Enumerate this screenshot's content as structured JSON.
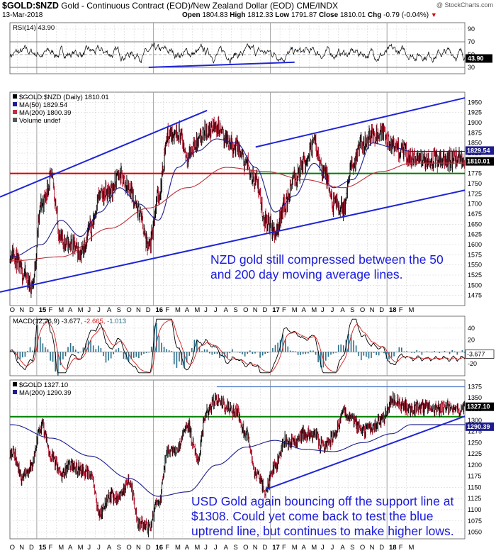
{
  "header": {
    "symbol": "$GOLD:$NZD",
    "description": "Gold - Continuous Contract (EOD)/New Zealand Dollar (EOD)",
    "exchange": "CME/INDX",
    "date": "13-Mar-2018",
    "open_label": "Open",
    "open": "1804.83",
    "high_label": "High",
    "high": "1812.33",
    "low_label": "Low",
    "low": "1791.87",
    "close_label": "Close",
    "close": "1810.01",
    "chg_label": "Chg",
    "chg": "-0.79 (-0.04%)",
    "watermark": "@ StockCharts.com"
  },
  "chart_data": [
    {
      "type": "line",
      "panel": "rsi",
      "legend": "RSI(14) 43.90",
      "ylim": [
        20,
        100
      ],
      "yticks": [
        30,
        50,
        70,
        90
      ],
      "reference_lines": [
        30,
        50,
        70
      ],
      "last_value_tag": "43.90",
      "trendline": {
        "from": [
          "2015-12",
          30
        ],
        "to": [
          "2017-03",
          38
        ]
      }
    },
    {
      "type": "candlestick",
      "panel": "price",
      "legend": [
        "$GOLD:$NZD (Daily) 1810.01",
        "MA(50) 1829.54",
        "MA(200) 1800.39",
        "Volume undef"
      ],
      "ylim": [
        1450,
        1975
      ],
      "yticks": [
        1475,
        1500,
        1525,
        1550,
        1575,
        1600,
        1625,
        1650,
        1675,
        1700,
        1725,
        1750,
        1775,
        1800,
        1825,
        1850,
        1875,
        1900,
        1925,
        1950
      ],
      "last_value_tags": [
        "1829.54",
        "1810.01"
      ],
      "support_lines": [
        {
          "value": 1775,
          "color": "#e00000",
          "range": [
            "2014-10",
            "2016-11"
          ]
        },
        {
          "value": 1775,
          "color": "#008000",
          "range": [
            "2016-11",
            "2018-03"
          ]
        }
      ],
      "price_series": [
        [
          "2014-10",
          1580
        ],
        [
          "2014-11",
          1530
        ],
        [
          "2014-12",
          1500
        ],
        [
          "2015-01",
          1700
        ],
        [
          "2015-02",
          1760
        ],
        [
          "2015-03",
          1610
        ],
        [
          "2015-04",
          1600
        ],
        [
          "2015-05",
          1580
        ],
        [
          "2015-06",
          1640
        ],
        [
          "2015-07",
          1720
        ],
        [
          "2015-08",
          1730
        ],
        [
          "2015-09",
          1770
        ],
        [
          "2015-10",
          1740
        ],
        [
          "2015-11",
          1680
        ],
        [
          "2015-12",
          1590
        ],
        [
          "2016-01",
          1720
        ],
        [
          "2016-02",
          1870
        ],
        [
          "2016-03",
          1880
        ],
        [
          "2016-04",
          1820
        ],
        [
          "2016-05",
          1850
        ],
        [
          "2016-06",
          1880
        ],
        [
          "2016-07",
          1890
        ],
        [
          "2016-08",
          1860
        ],
        [
          "2016-09",
          1840
        ],
        [
          "2016-10",
          1800
        ],
        [
          "2016-11",
          1760
        ],
        [
          "2016-12",
          1660
        ],
        [
          "2017-01",
          1630
        ],
        [
          "2017-02",
          1700
        ],
        [
          "2017-03",
          1760
        ],
        [
          "2017-04",
          1800
        ],
        [
          "2017-05",
          1850
        ],
        [
          "2017-06",
          1780
        ],
        [
          "2017-07",
          1700
        ],
        [
          "2017-08",
          1690
        ],
        [
          "2017-09",
          1800
        ],
        [
          "2017-10",
          1850
        ],
        [
          "2017-11",
          1870
        ],
        [
          "2017-12",
          1880
        ],
        [
          "2018-01",
          1840
        ],
        [
          "2018-02",
          1830
        ],
        [
          "2018-03",
          1810
        ]
      ],
      "ma50": [
        [
          "2014-10",
          1570
        ],
        [
          "2015-01",
          1600
        ],
        [
          "2015-03",
          1660
        ],
        [
          "2015-05",
          1620
        ],
        [
          "2015-07",
          1680
        ],
        [
          "2015-09",
          1740
        ],
        [
          "2015-11",
          1700
        ],
        [
          "2016-01",
          1660
        ],
        [
          "2016-03",
          1790
        ],
        [
          "2016-05",
          1830
        ],
        [
          "2016-07",
          1860
        ],
        [
          "2016-09",
          1850
        ],
        [
          "2016-11",
          1790
        ],
        [
          "2017-01",
          1680
        ],
        [
          "2017-03",
          1720
        ],
        [
          "2017-05",
          1800
        ],
        [
          "2017-07",
          1740
        ],
        [
          "2017-09",
          1760
        ],
        [
          "2017-11",
          1850
        ],
        [
          "2018-01",
          1840
        ],
        [
          "2018-03",
          1829.54
        ]
      ],
      "ma200": [
        [
          "2014-10",
          1560
        ],
        [
          "2015-03",
          1570
        ],
        [
          "2015-08",
          1640
        ],
        [
          "2015-12",
          1690
        ],
        [
          "2016-04",
          1740
        ],
        [
          "2016-08",
          1790
        ],
        [
          "2016-12",
          1780
        ],
        [
          "2017-04",
          1760
        ],
        [
          "2017-08",
          1740
        ],
        [
          "2017-12",
          1780
        ],
        [
          "2018-03",
          1800.39
        ]
      ],
      "channel_lines": [
        {
          "from": [
            "2014-10",
            1490
          ],
          "to": [
            "2018-03",
            1705
          ]
        },
        {
          "from": [
            "2014-10",
            1730
          ],
          "to": [
            "2016-06",
            1930
          ]
        },
        {
          "from": [
            "2016-11",
            1840
          ],
          "to": [
            "2018-03",
            1930
          ]
        }
      ]
    },
    {
      "type": "line",
      "panel": "macd",
      "legend": [
        "MACD(12,26,9)",
        "-3.677,",
        "-2.665,",
        "-1.013"
      ],
      "ylim": [
        -40,
        60
      ],
      "yticks": [
        -20,
        0,
        20,
        40
      ],
      "last_value_tag": "-3.677"
    },
    {
      "type": "candlestick",
      "panel": "usd-gold",
      "legend": [
        "$GOLD 1327.10",
        "MA(200) 1290.39"
      ],
      "ylim": [
        1035,
        1390
      ],
      "yticks": [
        1050,
        1075,
        1100,
        1125,
        1150,
        1175,
        1200,
        1225,
        1250,
        1275,
        1300,
        1325,
        1350,
        1375
      ],
      "last_value_tags": [
        "1327.10",
        "1290.39"
      ],
      "support_line": {
        "value": 1308,
        "color": "#008000"
      },
      "resistance_line": {
        "value": 1375,
        "range": [
          "2016-07",
          "2018-03"
        ]
      },
      "price_series": [
        [
          "2014-10",
          1230
        ],
        [
          "2014-11",
          1170
        ],
        [
          "2014-12",
          1200
        ],
        [
          "2015-01",
          1290
        ],
        [
          "2015-02",
          1220
        ],
        [
          "2015-03",
          1180
        ],
        [
          "2015-04",
          1200
        ],
        [
          "2015-05",
          1190
        ],
        [
          "2015-06",
          1175
        ],
        [
          "2015-07",
          1090
        ],
        [
          "2015-08",
          1130
        ],
        [
          "2015-09",
          1130
        ],
        [
          "2015-10",
          1165
        ],
        [
          "2015-11",
          1070
        ],
        [
          "2015-12",
          1060
        ],
        [
          "2016-01",
          1115
        ],
        [
          "2016-02",
          1230
        ],
        [
          "2016-03",
          1235
        ],
        [
          "2016-04",
          1290
        ],
        [
          "2016-05",
          1215
        ],
        [
          "2016-06",
          1320
        ],
        [
          "2016-07",
          1350
        ],
        [
          "2016-08",
          1330
        ],
        [
          "2016-09",
          1320
        ],
        [
          "2016-10",
          1270
        ],
        [
          "2016-11",
          1180
        ],
        [
          "2016-12",
          1145
        ],
        [
          "2017-01",
          1200
        ],
        [
          "2017-02",
          1255
        ],
        [
          "2017-03",
          1250
        ],
        [
          "2017-04",
          1270
        ],
        [
          "2017-05",
          1265
        ],
        [
          "2017-06",
          1240
        ],
        [
          "2017-07",
          1260
        ],
        [
          "2017-08",
          1320
        ],
        [
          "2017-09",
          1300
        ],
        [
          "2017-10",
          1275
        ],
        [
          "2017-11",
          1285
        ],
        [
          "2017-12",
          1300
        ],
        [
          "2018-01",
          1345
        ],
        [
          "2018-02",
          1335
        ],
        [
          "2018-03",
          1327.1
        ]
      ],
      "ma200": [
        [
          "2014-10",
          1290
        ],
        [
          "2015-02",
          1260
        ],
        [
          "2015-06",
          1220
        ],
        [
          "2015-10",
          1170
        ],
        [
          "2016-01",
          1130
        ],
        [
          "2016-04",
          1140
        ],
        [
          "2016-07",
          1200
        ],
        [
          "2016-10",
          1240
        ],
        [
          "2017-01",
          1255
        ],
        [
          "2017-04",
          1235
        ],
        [
          "2017-07",
          1230
        ],
        [
          "2017-10",
          1250
        ],
        [
          "2018-01",
          1270
        ],
        [
          "2018-03",
          1290.39
        ]
      ],
      "trendline": {
        "from": [
          "2016-12",
          1145
        ],
        "to": [
          "2018-03",
          1265
        ]
      }
    }
  ],
  "x_axis": {
    "labels": [
      "O",
      "N",
      "D",
      "15",
      "F",
      "M",
      "A",
      "M",
      "J",
      "J",
      "A",
      "S",
      "O",
      "N",
      "D",
      "16",
      "F",
      "M",
      "A",
      "M",
      "J",
      "J",
      "A",
      "S",
      "O",
      "N",
      "D",
      "17",
      "F",
      "M",
      "A",
      "M",
      "J",
      "J",
      "A",
      "S",
      "O",
      "N",
      "D",
      "18",
      "F",
      "M"
    ],
    "year_labels": [
      "15",
      "16",
      "17",
      "18"
    ]
  },
  "annotations": {
    "nzd_note": "NZD gold still compressed between the 50 and 200 day moving average lines.",
    "usd_note": "USD Gold again bouncing off the support line at $1308. Could yet come back to test the blue uptrend line, but continues to make higher lows."
  },
  "colors": {
    "up": "#000000",
    "down": "#b0102a",
    "ma50": "#1d1d8f",
    "ma200": "#c0303a",
    "trend": "#1f25d6",
    "support_green": "#008000",
    "support_red": "#e00000",
    "macd_hist": "#2a6f8a",
    "annotation": "#1a1adb"
  }
}
